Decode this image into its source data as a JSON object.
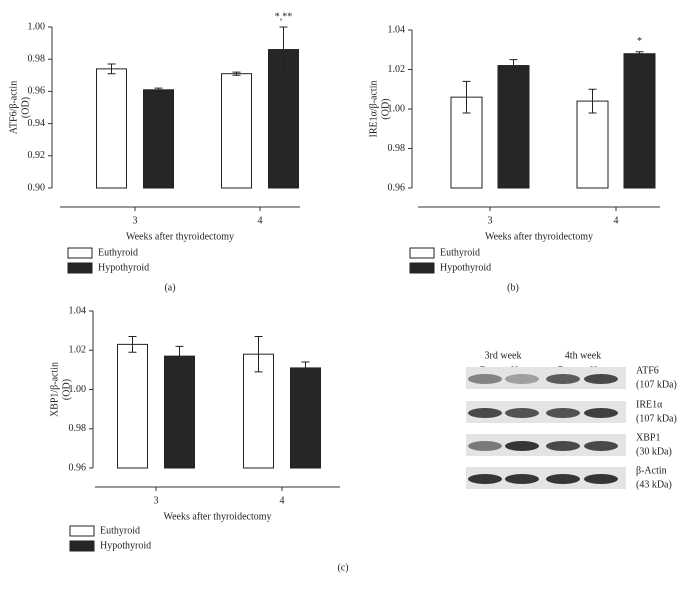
{
  "chart_data": [
    {
      "type": "bar",
      "panel": "(a)",
      "ylabel": [
        "ATF6/β-actin",
        "(OD)"
      ],
      "xlabel": "Weeks after thyroidectomy",
      "categories": [
        "3",
        "4"
      ],
      "series": [
        {
          "name": "Euthyroid",
          "color": "#ffffff",
          "values": [
            0.974,
            0.971
          ],
          "errors": [
            0.003,
            0.001
          ]
        },
        {
          "name": "Hypothyroid",
          "color": "#262626",
          "values": [
            0.961,
            0.986
          ],
          "errors": [
            0.001,
            0.014
          ]
        }
      ],
      "annotation": "*,**",
      "ylim": [
        0.9,
        1.0
      ],
      "yticks": [
        {
          "value": 0.9,
          "label": "0.90"
        },
        0.92,
        0.94,
        0.96,
        0.98,
        {
          "value": 1.0,
          "label": "1.00"
        }
      ]
    },
    {
      "type": "bar",
      "panel": "(b)",
      "ylabel": [
        "IRE1α/β-actin",
        "(OD)"
      ],
      "xlabel": "Weeks after thyroidectomy",
      "categories": [
        "3",
        "4"
      ],
      "series": [
        {
          "name": "Euthyroid",
          "color": "#ffffff",
          "values": [
            1.006,
            1.004
          ],
          "errors": [
            0.008,
            0.006
          ]
        },
        {
          "name": "Hypothyroid",
          "color": "#262626",
          "values": [
            1.022,
            1.028
          ],
          "errors": [
            0.003,
            0.001
          ]
        }
      ],
      "annotation": "*",
      "ylim": [
        0.96,
        1.04
      ],
      "yticks": [
        0.96,
        0.98,
        {
          "value": 1.0,
          "label": "1.00"
        },
        1.02,
        1.04
      ]
    },
    {
      "type": "bar",
      "panel": "(c)",
      "ylabel": [
        "XBP1/β-actin",
        "(OD)"
      ],
      "xlabel": "Weeks after thyroidectomy",
      "categories": [
        "3",
        "4"
      ],
      "series": [
        {
          "name": "Euthyroid",
          "color": "#ffffff",
          "values": [
            1.023,
            1.018
          ],
          "errors": [
            0.004,
            0.009
          ]
        },
        {
          "name": "Hypothyroid",
          "color": "#262626",
          "values": [
            1.017,
            1.011
          ],
          "errors": [
            0.005,
            0.003
          ]
        }
      ],
      "ylim": [
        0.96,
        1.04
      ],
      "yticks": [
        0.96,
        0.98,
        {
          "value": 1.0,
          "label": "1.00"
        },
        1.02,
        1.04
      ]
    }
  ],
  "blot": {
    "column_groups": [
      "3rd week",
      "4th week"
    ],
    "columns": [
      "Eu",
      "Hypo",
      "Eu",
      "Hypo"
    ],
    "rows": [
      {
        "protein": "ATF6",
        "size": "(107 kDa)"
      },
      {
        "protein": "IRE1α",
        "size": "(107 kDa)"
      },
      {
        "protein": "XBP1",
        "size": "(30 kDa)"
      },
      {
        "protein": "β-Actin",
        "size": "(43 kDa)"
      }
    ]
  }
}
